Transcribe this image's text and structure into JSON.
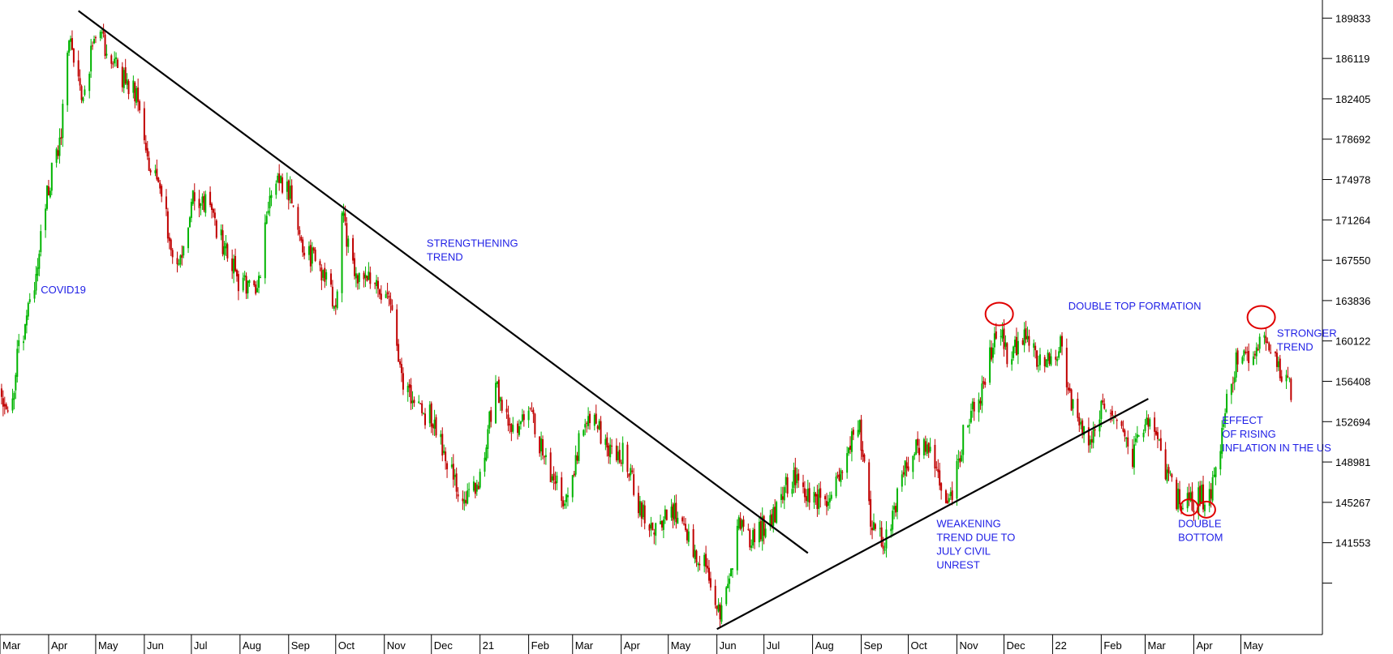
{
  "chart_data": {
    "type": "candlestick",
    "title": "",
    "xlabel": "",
    "ylabel": "",
    "y_axis_side": "right",
    "ylim": [
      133100,
      191500
    ],
    "grid": false,
    "colors": {
      "up": "#00b400",
      "down": "#c00000",
      "annotation": "#1e1ee6",
      "highlight": "#e00000",
      "trendline": "#000000"
    },
    "y_ticks": [
      {
        "value": 189833,
        "label": "189833"
      },
      {
        "value": 186119,
        "label": "186119"
      },
      {
        "value": 182405,
        "label": "182405"
      },
      {
        "value": 178692,
        "label": "178692"
      },
      {
        "value": 174978,
        "label": "174978"
      },
      {
        "value": 171264,
        "label": "171264"
      },
      {
        "value": 167550,
        "label": "167550"
      },
      {
        "value": 163836,
        "label": "163836"
      },
      {
        "value": 160122,
        "label": "160122"
      },
      {
        "value": 156408,
        "label": "156408"
      },
      {
        "value": 152694,
        "label": "152694"
      },
      {
        "value": 148981,
        "label": "148981"
      },
      {
        "value": 145267,
        "label": "145267"
      },
      {
        "value": 141553,
        "label": "141553"
      },
      {
        "value": 137839,
        "label": ""
      }
    ],
    "x_ticks": [
      {
        "month": "2020-03",
        "label": "Mar"
      },
      {
        "month": "2020-04",
        "label": "Apr"
      },
      {
        "month": "2020-05",
        "label": "May"
      },
      {
        "month": "2020-06",
        "label": "Jun"
      },
      {
        "month": "2020-07",
        "label": "Jul"
      },
      {
        "month": "2020-08",
        "label": "Aug"
      },
      {
        "month": "2020-09",
        "label": "Sep"
      },
      {
        "month": "2020-10",
        "label": "Oct"
      },
      {
        "month": "2020-11",
        "label": "Nov"
      },
      {
        "month": "2020-12",
        "label": "Dec"
      },
      {
        "month": "2021-01",
        "label": "21"
      },
      {
        "month": "2021-02",
        "label": "Feb"
      },
      {
        "month": "2021-03",
        "label": "Mar"
      },
      {
        "month": "2021-04",
        "label": "Apr"
      },
      {
        "month": "2021-05",
        "label": "May"
      },
      {
        "month": "2021-06",
        "label": "Jun"
      },
      {
        "month": "2021-07",
        "label": "Jul"
      },
      {
        "month": "2021-08",
        "label": "Aug"
      },
      {
        "month": "2021-09",
        "label": "Sep"
      },
      {
        "month": "2021-10",
        "label": "Oct"
      },
      {
        "month": "2021-11",
        "label": "Nov"
      },
      {
        "month": "2021-12",
        "label": "Dec"
      },
      {
        "month": "2022-01",
        "label": "22"
      },
      {
        "month": "2022-02",
        "label": "Feb"
      },
      {
        "month": "2022-03",
        "label": "Mar"
      },
      {
        "month": "2022-04",
        "label": "Apr"
      },
      {
        "month": "2022-05",
        "label": "May"
      }
    ],
    "x_range": [
      "2020-03-01",
      "2022-06-22"
    ],
    "price_path": [
      {
        "date": "2020-03-01",
        "close": 155500
      },
      {
        "date": "2020-03-07",
        "close": 152500
      },
      {
        "date": "2020-03-12",
        "close": 158500
      },
      {
        "date": "2020-03-22",
        "close": 164500
      },
      {
        "date": "2020-03-31",
        "close": 174000
      },
      {
        "date": "2020-04-08",
        "close": 178000
      },
      {
        "date": "2020-04-14",
        "close": 188500
      },
      {
        "date": "2020-04-22",
        "close": 183000
      },
      {
        "date": "2020-05-03",
        "close": 189000
      },
      {
        "date": "2020-05-10",
        "close": 186000
      },
      {
        "date": "2020-05-20",
        "close": 184000
      },
      {
        "date": "2020-05-28",
        "close": 183000
      },
      {
        "date": "2020-06-03",
        "close": 177000
      },
      {
        "date": "2020-06-12",
        "close": 173000
      },
      {
        "date": "2020-06-23",
        "close": 166500
      },
      {
        "date": "2020-07-02",
        "close": 173000
      },
      {
        "date": "2020-07-12",
        "close": 172500
      },
      {
        "date": "2020-07-20",
        "close": 169500
      },
      {
        "date": "2020-07-31",
        "close": 165500
      },
      {
        "date": "2020-08-12",
        "close": 165000
      },
      {
        "date": "2020-08-22",
        "close": 175500
      },
      {
        "date": "2020-09-02",
        "close": 174000
      },
      {
        "date": "2020-09-11",
        "close": 168500
      },
      {
        "date": "2020-09-23",
        "close": 166500
      },
      {
        "date": "2020-10-01",
        "close": 163000
      },
      {
        "date": "2020-10-05",
        "close": 171500
      },
      {
        "date": "2020-10-15",
        "close": 166000
      },
      {
        "date": "2020-10-26",
        "close": 165500
      },
      {
        "date": "2020-11-05",
        "close": 163000
      },
      {
        "date": "2020-11-11",
        "close": 157000
      },
      {
        "date": "2020-11-20",
        "close": 154000
      },
      {
        "date": "2020-12-02",
        "close": 153000
      },
      {
        "date": "2020-12-10",
        "close": 149500
      },
      {
        "date": "2020-12-20",
        "close": 145500
      },
      {
        "date": "2020-12-30",
        "close": 146500
      },
      {
        "date": "2021-01-11",
        "close": 156000
      },
      {
        "date": "2021-01-22",
        "close": 151500
      },
      {
        "date": "2021-02-02",
        "close": 153500
      },
      {
        "date": "2021-02-12",
        "close": 149000
      },
      {
        "date": "2021-02-26",
        "close": 145000
      },
      {
        "date": "2021-03-05",
        "close": 151000
      },
      {
        "date": "2021-03-14",
        "close": 154000
      },
      {
        "date": "2021-03-23",
        "close": 149500
      },
      {
        "date": "2021-04-02",
        "close": 150000
      },
      {
        "date": "2021-04-12",
        "close": 145000
      },
      {
        "date": "2021-04-22",
        "close": 143000
      },
      {
        "date": "2021-05-04",
        "close": 144500
      },
      {
        "date": "2021-05-14",
        "close": 141500
      },
      {
        "date": "2021-05-25",
        "close": 139500
      },
      {
        "date": "2021-06-01",
        "close": 134500
      },
      {
        "date": "2021-06-08",
        "close": 137500
      },
      {
        "date": "2021-06-15",
        "close": 143000
      },
      {
        "date": "2021-06-24",
        "close": 142000
      },
      {
        "date": "2021-07-07",
        "close": 144000
      },
      {
        "date": "2021-07-18",
        "close": 147500
      },
      {
        "date": "2021-07-29",
        "close": 146000
      },
      {
        "date": "2021-08-10",
        "close": 145500
      },
      {
        "date": "2021-08-21",
        "close": 148500
      },
      {
        "date": "2021-08-30",
        "close": 153000
      },
      {
        "date": "2021-09-07",
        "close": 144000
      },
      {
        "date": "2021-09-16",
        "close": 141500
      },
      {
        "date": "2021-09-28",
        "close": 148000
      },
      {
        "date": "2021-10-08",
        "close": 150500
      },
      {
        "date": "2021-10-17",
        "close": 149000
      },
      {
        "date": "2021-10-27",
        "close": 145000
      },
      {
        "date": "2021-11-06",
        "close": 152000
      },
      {
        "date": "2021-11-18",
        "close": 156000
      },
      {
        "date": "2021-11-27",
        "close": 161500
      },
      {
        "date": "2021-12-04",
        "close": 158500
      },
      {
        "date": "2021-12-13",
        "close": 160500
      },
      {
        "date": "2021-12-26",
        "close": 158000
      },
      {
        "date": "2022-01-06",
        "close": 159500
      },
      {
        "date": "2022-01-14",
        "close": 154000
      },
      {
        "date": "2022-01-25",
        "close": 150500
      },
      {
        "date": "2022-02-03",
        "close": 154500
      },
      {
        "date": "2022-02-11",
        "close": 153000
      },
      {
        "date": "2022-02-21",
        "close": 149500
      },
      {
        "date": "2022-03-02",
        "close": 153500
      },
      {
        "date": "2022-03-11",
        "close": 149500
      },
      {
        "date": "2022-03-21",
        "close": 145500
      },
      {
        "date": "2022-03-29",
        "close": 145000
      },
      {
        "date": "2022-04-05",
        "close": 146000
      },
      {
        "date": "2022-04-10",
        "close": 145000
      },
      {
        "date": "2022-04-16",
        "close": 149000
      },
      {
        "date": "2022-04-24",
        "close": 156000
      },
      {
        "date": "2022-05-01",
        "close": 159500
      },
      {
        "date": "2022-05-08",
        "close": 157000
      },
      {
        "date": "2022-05-13",
        "close": 161000
      },
      {
        "date": "2022-05-22",
        "close": 158500
      },
      {
        "date": "2022-05-29",
        "close": 157000
      },
      {
        "date": "2022-06-02",
        "close": 155500
      }
    ],
    "trendlines": [
      {
        "start": {
          "date": "2020-04-20",
          "value": 190500
        },
        "end": {
          "date": "2021-07-29",
          "value": 140600
        }
      },
      {
        "start": {
          "date": "2021-06-01",
          "value": 133600
        },
        "end": {
          "date": "2022-03-03",
          "value": 154800
        }
      }
    ],
    "annotations": [
      {
        "id": "covid19",
        "lines": [
          "COVID19"
        ],
        "date": "2020-03-27",
        "value": 164500
      },
      {
        "id": "strengthening-trend",
        "lines": [
          "STRENGTHENING",
          "TREND"
        ],
        "date": "2020-11-28",
        "value": 168800
      },
      {
        "id": "double-top-formation",
        "lines": [
          "DOUBLE TOP FORMATION"
        ],
        "date": "2022-01-11",
        "value": 163000
      },
      {
        "id": "stronger-trend",
        "lines": [
          "STRONGER",
          "TREND"
        ],
        "date": "2022-05-24",
        "value": 160500
      },
      {
        "id": "effect-of-rising-inflation",
        "lines": [
          "EFFECT",
          "OF RISING",
          "INFLATION IN THE US"
        ],
        "date": "2022-04-19",
        "value": 152500
      },
      {
        "id": "weakening-trend",
        "lines": [
          "WEAKENING",
          "TREND DUE TO",
          "JULY CIVIL",
          "UNREST"
        ],
        "date": "2021-10-19",
        "value": 143000
      },
      {
        "id": "double-bottom",
        "lines": [
          "DOUBLE",
          "BOTTOM"
        ],
        "date": "2022-03-22",
        "value": 143000
      }
    ],
    "highlights": [
      {
        "id": "top-1",
        "date": "2021-11-28",
        "value": 162600
      },
      {
        "id": "top-2",
        "date": "2022-05-14",
        "value": 162300
      },
      {
        "id": "bottom-1",
        "date": "2022-03-29",
        "value": 144800
      },
      {
        "id": "bottom-2",
        "date": "2022-04-09",
        "value": 144600
      }
    ]
  }
}
